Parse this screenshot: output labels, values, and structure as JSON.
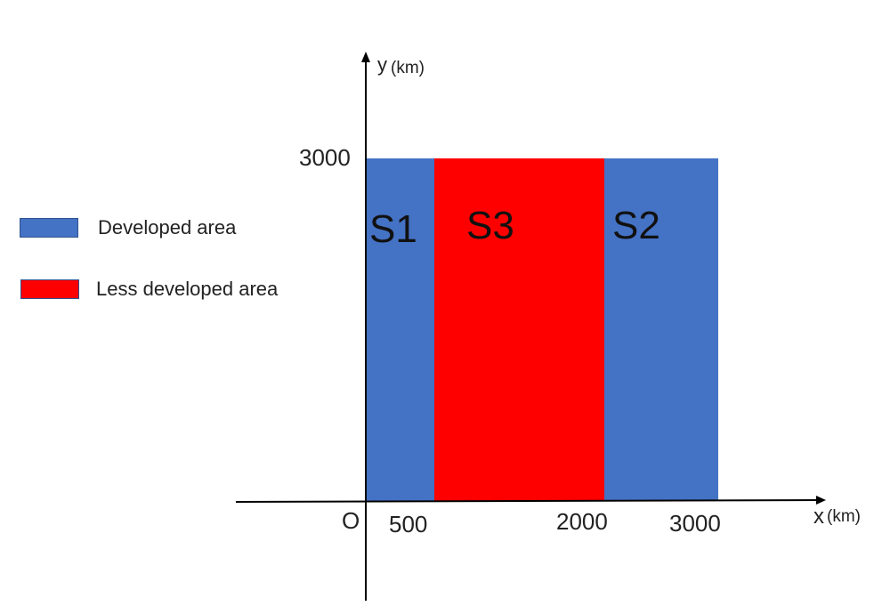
{
  "colors": {
    "developed": "#4472c4",
    "less_developed": "#ff0000",
    "axis": "#000000"
  },
  "legend": [
    {
      "label": "Developed area",
      "color": "#4472c4"
    },
    {
      "label": "Less developed area",
      "color": "#ff0000"
    }
  ],
  "axes": {
    "origin_label": "O",
    "x_label": "x",
    "x_unit": "(km)",
    "y_label": "y",
    "y_unit": "(km)",
    "x_ticks": [
      "500",
      "2000",
      "3000"
    ],
    "y_ticks": [
      "3000"
    ]
  },
  "regions": [
    {
      "name": "S1",
      "type": "developed",
      "x_from": 0,
      "x_to": 500,
      "y_to": 3000
    },
    {
      "name": "S3",
      "type": "less_developed",
      "x_from": 500,
      "x_to": 2000,
      "y_to": 3000
    },
    {
      "name": "S2",
      "type": "developed",
      "x_from": 2000,
      "x_to": 3000,
      "y_to": 3000
    }
  ]
}
